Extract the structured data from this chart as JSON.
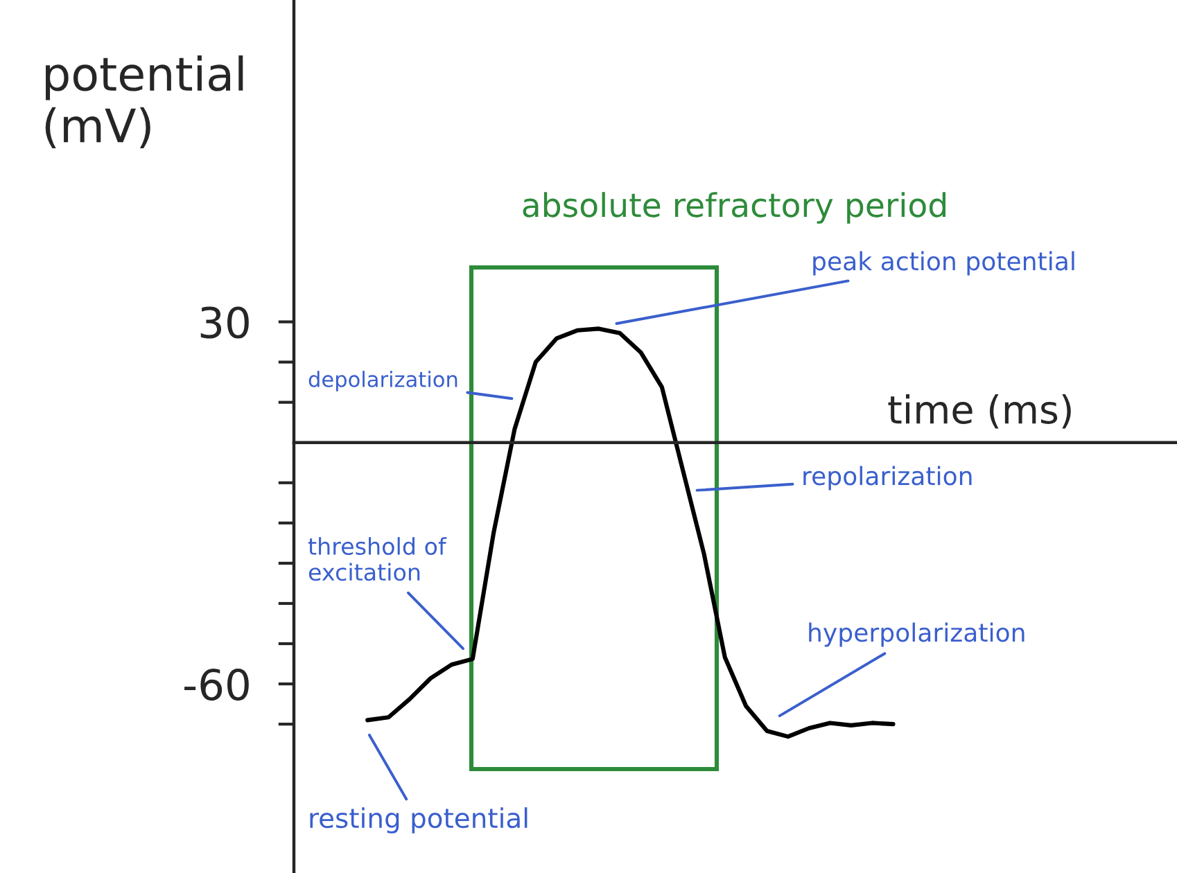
{
  "chart_data": {
    "type": "line",
    "xlabel": "time (ms)",
    "ylabel": "potential\n(mV)",
    "categories": [
      null,
      null,
      null,
      null,
      null,
      null,
      null,
      null,
      null,
      null,
      null,
      null,
      null,
      null,
      null,
      null,
      null,
      null,
      null,
      null,
      null,
      null,
      null,
      null,
      null,
      null,
      null,
      null,
      null,
      null,
      null,
      null,
      null,
      null,
      null,
      null,
      null,
      null,
      null,
      null,
      null,
      null
    ],
    "series": [
      {
        "color": "#000000",
        "values": [
          null,
          null,
          null,
          -69,
          -68.3,
          -63.8,
          -58.6,
          -55.2,
          -53.8,
          -22.4,
          3.4,
          20,
          25.9,
          27.9,
          28.3,
          27.2,
          22.4,
          13.8,
          -6.9,
          -27.6,
          -53.4,
          -65.5,
          -71.7,
          -73.1,
          -71,
          -69.7,
          -70.3,
          -69.7,
          -70,
          null,
          null,
          null,
          null,
          null,
          null,
          null,
          null,
          null,
          null,
          null,
          null,
          null
        ]
      }
    ],
    "ylim": [
      -107,
      110
    ],
    "yticks": [
      {
        "value": 30,
        "label": "30"
      },
      {
        "value": 20,
        "label": null
      },
      {
        "value": 10,
        "label": null
      },
      {
        "value": -10,
        "label": null
      },
      {
        "value": -20,
        "label": null
      },
      {
        "value": -30,
        "label": null
      },
      {
        "value": -40,
        "label": null
      },
      {
        "value": -50,
        "label": null
      },
      {
        "value": -60,
        "label": "-60"
      },
      {
        "value": -70,
        "label": null
      }
    ],
    "tick_labels": "y",
    "annotations": [
      "absolute refractory period",
      "peak action potential",
      "depolarization",
      "repolarization",
      "threshold of\nexcitation",
      "hyperpolarization",
      "resting potential"
    ]
  }
}
